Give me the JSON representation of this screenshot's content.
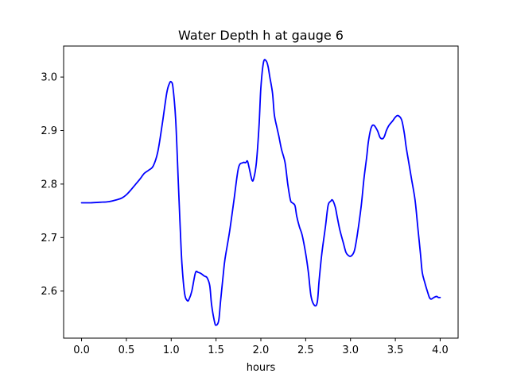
{
  "chart_data": {
    "type": "line",
    "title": "Water Depth h at gauge 6",
    "xlabel": "hours",
    "ylabel": "",
    "xlim": [
      -0.2,
      4.2
    ],
    "ylim": [
      2.512,
      3.058
    ],
    "grid": false,
    "x_ticks": [
      {
        "value": 0.0,
        "label": "0.0"
      },
      {
        "value": 0.5,
        "label": "0.5"
      },
      {
        "value": 1.0,
        "label": "1.0"
      },
      {
        "value": 1.5,
        "label": "1.5"
      },
      {
        "value": 2.0,
        "label": "2.0"
      },
      {
        "value": 2.5,
        "label": "2.5"
      },
      {
        "value": 3.0,
        "label": "3.0"
      },
      {
        "value": 3.5,
        "label": "3.5"
      },
      {
        "value": 4.0,
        "label": "4.0"
      }
    ],
    "y_ticks": [
      {
        "value": 2.6,
        "label": "2.6"
      },
      {
        "value": 2.7,
        "label": "2.7"
      },
      {
        "value": 2.8,
        "label": "2.8"
      },
      {
        "value": 2.9,
        "label": "2.9"
      },
      {
        "value": 3.0,
        "label": "3.0"
      }
    ],
    "series": [
      {
        "color": "#0000ff",
        "x": [
          0.0,
          0.1,
          0.2,
          0.3,
          0.4,
          0.45,
          0.5,
          0.55,
          0.6,
          0.65,
          0.7,
          0.75,
          0.8,
          0.85,
          0.9,
          0.95,
          0.98,
          1.0,
          1.02,
          1.05,
          1.08,
          1.1,
          1.12,
          1.15,
          1.18,
          1.2,
          1.23,
          1.27,
          1.3,
          1.33,
          1.37,
          1.4,
          1.43,
          1.45,
          1.48,
          1.5,
          1.53,
          1.55,
          1.58,
          1.6,
          1.65,
          1.7,
          1.75,
          1.8,
          1.83,
          1.85,
          1.87,
          1.9,
          1.92,
          1.95,
          1.98,
          2.0,
          2.03,
          2.06,
          2.08,
          2.1,
          2.13,
          2.15,
          2.18,
          2.2,
          2.23,
          2.27,
          2.3,
          2.33,
          2.35,
          2.38,
          2.4,
          2.43,
          2.46,
          2.5,
          2.53,
          2.56,
          2.6,
          2.63,
          2.65,
          2.68,
          2.72,
          2.75,
          2.78,
          2.8,
          2.83,
          2.85,
          2.88,
          2.92,
          2.95,
          2.98,
          3.0,
          3.03,
          3.05,
          3.08,
          3.12,
          3.15,
          3.18,
          3.2,
          3.23,
          3.26,
          3.3,
          3.33,
          3.36,
          3.38,
          3.4,
          3.43,
          3.47,
          3.5,
          3.53,
          3.57,
          3.6,
          3.62,
          3.65,
          3.68,
          3.72,
          3.75,
          3.78,
          3.8,
          3.83,
          3.86,
          3.88,
          3.9,
          3.93,
          3.96,
          3.98,
          4.0
        ],
        "y": [
          2.765,
          2.765,
          2.766,
          2.767,
          2.771,
          2.774,
          2.78,
          2.789,
          2.799,
          2.809,
          2.82,
          2.826,
          2.834,
          2.86,
          2.912,
          2.97,
          2.988,
          2.991,
          2.98,
          2.92,
          2.8,
          2.72,
          2.65,
          2.595,
          2.582,
          2.585,
          2.6,
          2.634,
          2.635,
          2.633,
          2.628,
          2.625,
          2.61,
          2.575,
          2.545,
          2.536,
          2.545,
          2.58,
          2.63,
          2.66,
          2.71,
          2.77,
          2.83,
          2.84,
          2.84,
          2.843,
          2.83,
          2.808,
          2.81,
          2.84,
          2.91,
          2.98,
          3.028,
          3.03,
          3.02,
          3.0,
          2.97,
          2.93,
          2.905,
          2.89,
          2.865,
          2.84,
          2.8,
          2.77,
          2.765,
          2.76,
          2.74,
          2.72,
          2.705,
          2.67,
          2.635,
          2.59,
          2.573,
          2.58,
          2.62,
          2.67,
          2.72,
          2.76,
          2.768,
          2.77,
          2.757,
          2.74,
          2.715,
          2.69,
          2.672,
          2.666,
          2.665,
          2.67,
          2.68,
          2.71,
          2.76,
          2.81,
          2.85,
          2.88,
          2.905,
          2.91,
          2.9,
          2.887,
          2.885,
          2.89,
          2.9,
          2.91,
          2.918,
          2.925,
          2.928,
          2.92,
          2.895,
          2.87,
          2.84,
          2.81,
          2.77,
          2.72,
          2.67,
          2.635,
          2.615,
          2.598,
          2.588,
          2.585,
          2.588,
          2.59,
          2.588,
          2.588
        ]
      }
    ]
  }
}
